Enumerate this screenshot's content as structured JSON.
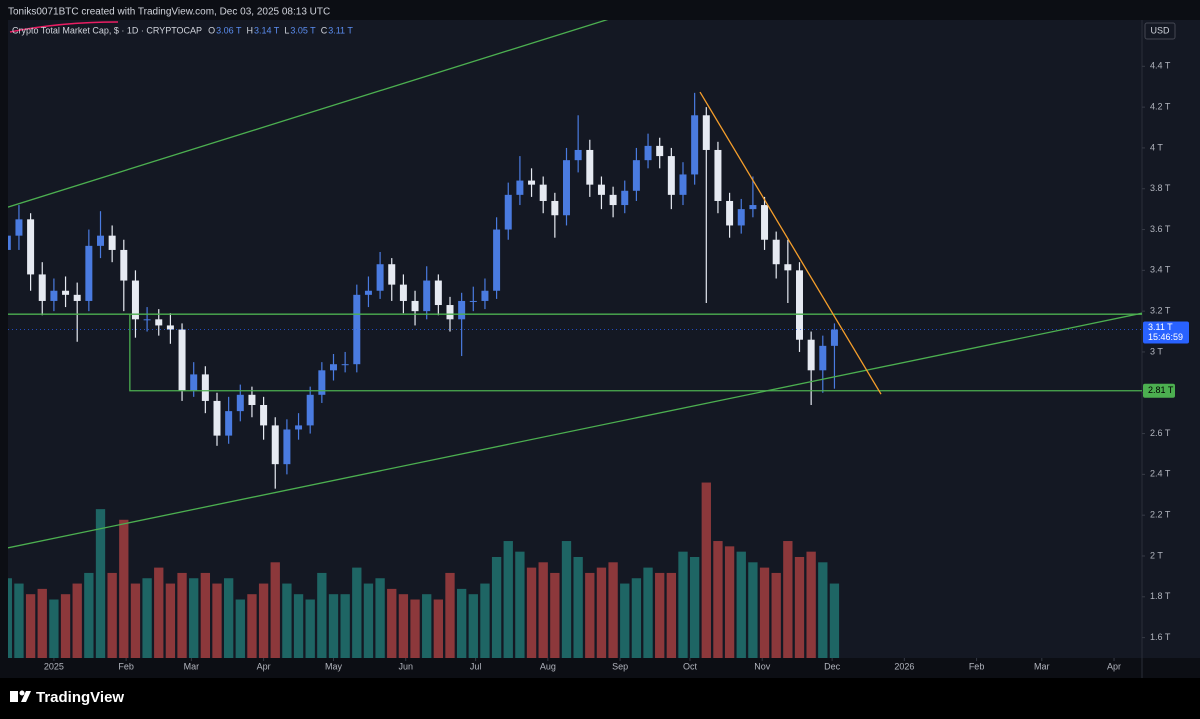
{
  "header": {
    "credit": "Toniks0071BTC created with TradingView.com, Dec 03, 2025 08:13 UTC"
  },
  "chart_data": {
    "type": "candlestick",
    "title": "Crypto Total Market Cap, $ · 1D · CRYPTOCAP",
    "ohlc_legend": [
      {
        "label": "O",
        "value": "3.06 T"
      },
      {
        "label": "H",
        "value": "3.14 T"
      },
      {
        "label": "L",
        "value": "3.05 T"
      },
      {
        "label": "C",
        "value": "3.11 T"
      }
    ],
    "currency": "USD",
    "x": [
      -20,
      -15,
      -10,
      -5,
      0,
      5,
      10,
      15,
      20,
      25,
      30,
      35,
      40,
      45,
      50,
      55,
      60,
      65,
      70,
      75,
      80,
      85,
      90,
      95,
      100,
      105,
      110,
      115,
      120,
      125,
      130,
      135,
      140,
      145,
      150,
      155,
      160,
      165,
      170,
      175,
      180,
      185,
      190,
      195,
      200,
      205,
      210,
      215,
      220,
      225,
      230,
      235,
      240,
      245,
      250,
      255,
      260,
      265,
      270,
      275,
      280,
      285,
      290,
      295,
      300,
      305,
      310,
      315,
      320,
      325,
      330,
      335
    ],
    "open": [
      3.5,
      3.57,
      3.65,
      3.38,
      3.25,
      3.3,
      3.28,
      3.25,
      3.52,
      3.57,
      3.5,
      3.35,
      3.16,
      3.16,
      3.13,
      3.11,
      2.81,
      2.89,
      2.76,
      2.59,
      2.71,
      2.79,
      2.74,
      2.64,
      2.45,
      2.62,
      2.64,
      2.79,
      2.91,
      2.94,
      2.94,
      3.28,
      3.3,
      3.43,
      3.33,
      3.25,
      3.2,
      3.35,
      3.23,
      3.16,
      3.25,
      3.25,
      3.3,
      3.6,
      3.77,
      3.84,
      3.82,
      3.74,
      3.67,
      3.94,
      3.99,
      3.82,
      3.77,
      3.72,
      3.79,
      3.94,
      4.01,
      3.96,
      3.77,
      3.87,
      4.16,
      3.99,
      3.74,
      3.62,
      3.7,
      3.72,
      3.55,
      3.43,
      3.4,
      3.06,
      2.91,
      3.03
    ],
    "high": [
      3.62,
      3.72,
      3.68,
      3.44,
      3.36,
      3.37,
      3.34,
      3.6,
      3.69,
      3.62,
      3.55,
      3.4,
      3.22,
      3.21,
      3.19,
      3.14,
      2.95,
      2.93,
      2.8,
      2.78,
      2.84,
      2.83,
      2.78,
      2.68,
      2.67,
      2.7,
      2.83,
      2.95,
      2.99,
      3.0,
      3.33,
      3.37,
      3.49,
      3.46,
      3.38,
      3.3,
      3.42,
      3.38,
      3.27,
      3.29,
      3.32,
      3.36,
      3.66,
      3.83,
      3.96,
      3.9,
      3.86,
      3.78,
      4.0,
      4.16,
      4.04,
      3.86,
      3.81,
      3.84,
      4.0,
      4.07,
      4.05,
      4.0,
      3.93,
      4.27,
      4.2,
      4.03,
      3.78,
      3.75,
      3.86,
      3.76,
      3.59,
      3.55,
      3.44,
      3.1,
      3.08,
      3.14
    ],
    "low": [
      3.42,
      3.5,
      3.3,
      3.18,
      3.2,
      3.22,
      3.05,
      3.2,
      3.46,
      3.44,
      3.2,
      3.07,
      3.1,
      3.08,
      3.04,
      2.76,
      2.78,
      2.7,
      2.54,
      2.55,
      2.66,
      2.68,
      2.57,
      2.33,
      2.4,
      2.57,
      2.6,
      2.75,
      2.86,
      2.9,
      2.9,
      3.22,
      3.26,
      3.25,
      3.19,
      3.13,
      3.16,
      3.18,
      3.1,
      2.98,
      3.2,
      3.21,
      3.26,
      3.55,
      3.72,
      3.76,
      3.68,
      3.56,
      3.62,
      3.88,
      3.76,
      3.7,
      3.66,
      3.68,
      3.74,
      3.9,
      3.9,
      3.7,
      3.72,
      3.82,
      3.24,
      3.68,
      3.56,
      3.58,
      3.66,
      3.5,
      3.36,
      3.24,
      3.0,
      2.74,
      2.8,
      2.82
    ],
    "close": [
      3.57,
      3.65,
      3.38,
      3.25,
      3.3,
      3.28,
      3.25,
      3.52,
      3.57,
      3.5,
      3.35,
      3.16,
      3.16,
      3.13,
      3.11,
      2.81,
      2.89,
      2.76,
      2.59,
      2.71,
      2.79,
      2.74,
      2.64,
      2.45,
      2.62,
      2.64,
      2.79,
      2.91,
      2.94,
      2.94,
      3.28,
      3.3,
      3.43,
      3.33,
      3.25,
      3.2,
      3.35,
      3.23,
      3.16,
      3.25,
      3.25,
      3.3,
      3.6,
      3.77,
      3.84,
      3.82,
      3.74,
      3.67,
      3.94,
      3.99,
      3.82,
      3.77,
      3.72,
      3.79,
      3.94,
      4.01,
      3.96,
      3.77,
      3.87,
      4.16,
      3.99,
      3.74,
      3.62,
      3.7,
      3.72,
      3.55,
      3.43,
      3.4,
      3.06,
      2.91,
      3.03,
      3.11
    ],
    "volume": [
      75,
      70,
      60,
      65,
      55,
      60,
      70,
      80,
      140,
      80,
      130,
      70,
      75,
      85,
      70,
      80,
      75,
      80,
      70,
      75,
      55,
      60,
      70,
      90,
      70,
      60,
      55,
      80,
      60,
      60,
      85,
      70,
      75,
      65,
      60,
      55,
      60,
      55,
      80,
      65,
      60,
      70,
      95,
      110,
      100,
      85,
      90,
      80,
      110,
      95,
      80,
      85,
      90,
      70,
      75,
      85,
      80,
      80,
      100,
      95,
      165,
      110,
      105,
      100,
      90,
      85,
      80,
      110,
      95,
      100,
      90,
      70
    ],
    "volume_lim": [
      0,
      600
    ],
    "xlim": [
      -19.7,
      467
    ],
    "xticks": [
      {
        "value": 0,
        "label": "2025"
      },
      {
        "value": 31,
        "label": "Feb"
      },
      {
        "value": 59,
        "label": "Mar"
      },
      {
        "value": 90,
        "label": "Apr"
      },
      {
        "value": 120,
        "label": "May"
      },
      {
        "value": 151,
        "label": "Jun"
      },
      {
        "value": 181,
        "label": "Jul"
      },
      {
        "value": 212,
        "label": "Aug"
      },
      {
        "value": 243,
        "label": "Sep"
      },
      {
        "value": 273,
        "label": "Oct"
      },
      {
        "value": 304,
        "label": "Nov"
      },
      {
        "value": 334,
        "label": "Dec"
      },
      {
        "value": 365,
        "label": "2026"
      },
      {
        "value": 396,
        "label": "Feb"
      },
      {
        "value": 424,
        "label": "Mar"
      },
      {
        "value": 455,
        "label": "Apr"
      }
    ],
    "ylim": [
      1.5,
      4.627
    ],
    "yticks": [
      {
        "value": 1.6,
        "label": "1.6 T"
      },
      {
        "value": 1.8,
        "label": "1.8 T"
      },
      {
        "value": 2,
        "label": "2 T"
      },
      {
        "value": 2.2,
        "label": "2.2 T"
      },
      {
        "value": 2.4,
        "label": "2.4 T"
      },
      {
        "value": 2.6,
        "label": "2.6 T"
      },
      {
        "value": 2.8,
        "label": "2.8 T"
      },
      {
        "value": 3,
        "label": "3 T"
      },
      {
        "value": 3.2,
        "label": "3.2 T"
      },
      {
        "value": 3.4,
        "label": "3.4 T"
      },
      {
        "value": 3.6,
        "label": "3.6 T"
      },
      {
        "value": 3.8,
        "label": "3.8 T"
      },
      {
        "value": 4,
        "label": "4 T"
      },
      {
        "value": 4.2,
        "label": "4.2 T"
      },
      {
        "value": 4.4,
        "label": "4.4 T"
      }
    ],
    "up_color": "#4a7be0",
    "down_color": "#e6eaf2",
    "volume_up_color": "#26a69a",
    "volume_down_color": "#ef5350",
    "last_price": {
      "value": 3.11,
      "label": "3.11 T",
      "countdown": "15:46:59",
      "color": "#2962ff"
    },
    "level_label": {
      "value": 2.81,
      "label": "2.81 T",
      "color": "#4caf50"
    },
    "drawings": [
      {
        "color": "#4caf50",
        "x": [
          -19.7,
          239.5
        ],
        "y": [
          3.71,
          4.636
        ]
      },
      {
        "color": "#4caf50",
        "x": [
          -19.7,
          467
        ],
        "y": [
          2.04,
          3.19
        ]
      },
      {
        "color": "#4caf50",
        "x": [
          -19.7,
          467
        ],
        "y": [
          3.185,
          3.185
        ]
      },
      {
        "color": "#4caf50",
        "x": [
          32.6,
          32.6,
          467
        ],
        "y": [
          3.185,
          2.81,
          2.81
        ]
      },
      {
        "color": "#f59e2b",
        "x": [
          277.3,
          355
        ],
        "y": [
          4.274,
          2.793
        ]
      }
    ]
  },
  "footer": {
    "brand": "TradingView"
  }
}
